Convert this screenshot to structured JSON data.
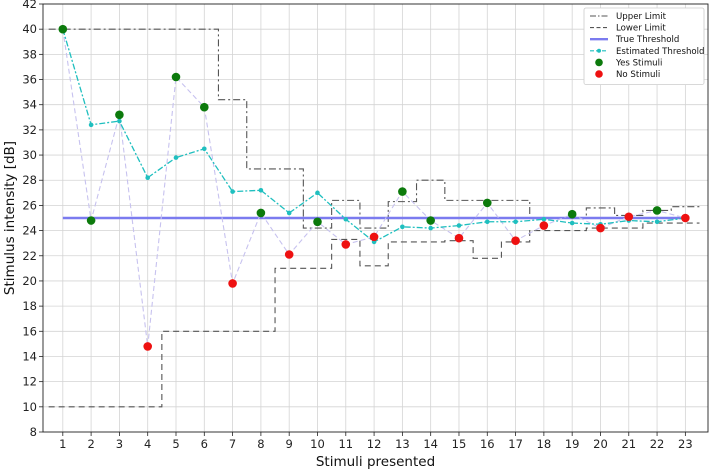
{
  "chart_data": {
    "type": "line",
    "title": "",
    "xlabel": "Stimuli presented",
    "ylabel": "Stimulus intensity [dB]",
    "xlim": [
      0.3,
      23.8
    ],
    "ylim": [
      8,
      42
    ],
    "x_ticks": [
      1,
      2,
      3,
      4,
      5,
      6,
      7,
      8,
      9,
      10,
      11,
      12,
      13,
      14,
      15,
      16,
      17,
      18,
      19,
      20,
      21,
      22,
      23
    ],
    "y_ticks": [
      8,
      10,
      12,
      14,
      16,
      18,
      20,
      22,
      24,
      26,
      28,
      30,
      32,
      34,
      36,
      38,
      40,
      42
    ],
    "grid": true,
    "legend_position": "top-right",
    "colors": {
      "upper_limit": "#555555",
      "lower_limit": "#555555",
      "true_threshold": "#7b7bef",
      "estimated_threshold": "#1fbfbf",
      "presented_path": "#c7c2ef",
      "yes_stimuli": "#0c7a0c",
      "no_stimuli": "#ee1111"
    },
    "series": [
      {
        "name": "Upper Limit",
        "style": "dash-dot-step",
        "values": [
          40,
          40,
          40,
          40,
          40,
          40,
          34.4,
          28.9,
          28.9,
          24.2,
          26.4,
          24.2,
          26.3,
          28,
          26.4,
          26.4,
          26.4,
          25,
          25,
          25.8,
          25.2,
          25.6,
          25.9
        ]
      },
      {
        "name": "Lower Limit",
        "style": "dashed-step",
        "values": [
          10,
          10,
          10,
          10,
          16,
          16,
          16,
          16,
          21,
          21,
          23.3,
          21.2,
          23.1,
          23.1,
          23.2,
          21.8,
          23.1,
          24,
          24,
          24.2,
          24.2,
          24.6,
          24.6
        ]
      },
      {
        "name": "True Threshold",
        "style": "solid",
        "value": 25
      },
      {
        "name": "Estimated Threshold",
        "style": "dashed-dot-markers",
        "values": [
          40,
          32.4,
          32.7,
          28.2,
          29.8,
          30.5,
          27.1,
          27.2,
          25.4,
          27,
          24.9,
          23.1,
          24.3,
          24.2,
          24.4,
          24.7,
          24.7,
          24.9,
          24.6,
          24.5,
          24.8,
          24.7,
          25
        ]
      },
      {
        "name": "Yes Stimuli",
        "style": "markers",
        "points": [
          {
            "x": 1,
            "y": 40
          },
          {
            "x": 2,
            "y": 24.8
          },
          {
            "x": 3,
            "y": 33.2
          },
          {
            "x": 5,
            "y": 36.2
          },
          {
            "x": 6,
            "y": 33.8
          },
          {
            "x": 8,
            "y": 25.4
          },
          {
            "x": 10,
            "y": 24.7
          },
          {
            "x": 13,
            "y": 27.1
          },
          {
            "x": 14,
            "y": 24.8
          },
          {
            "x": 16,
            "y": 26.2
          },
          {
            "x": 19,
            "y": 25.3
          },
          {
            "x": 22,
            "y": 25.6
          }
        ]
      },
      {
        "name": "No Stimuli",
        "style": "markers",
        "points": [
          {
            "x": 4,
            "y": 14.8
          },
          {
            "x": 7,
            "y": 19.8
          },
          {
            "x": 9,
            "y": 22.1
          },
          {
            "x": 11,
            "y": 22.9
          },
          {
            "x": 12,
            "y": 23.5
          },
          {
            "x": 15,
            "y": 23.4
          },
          {
            "x": 17,
            "y": 23.2
          },
          {
            "x": 18,
            "y": 24.4
          },
          {
            "x": 20,
            "y": 24.2
          },
          {
            "x": 21,
            "y": 25.1
          },
          {
            "x": 23,
            "y": 25
          }
        ]
      }
    ]
  }
}
